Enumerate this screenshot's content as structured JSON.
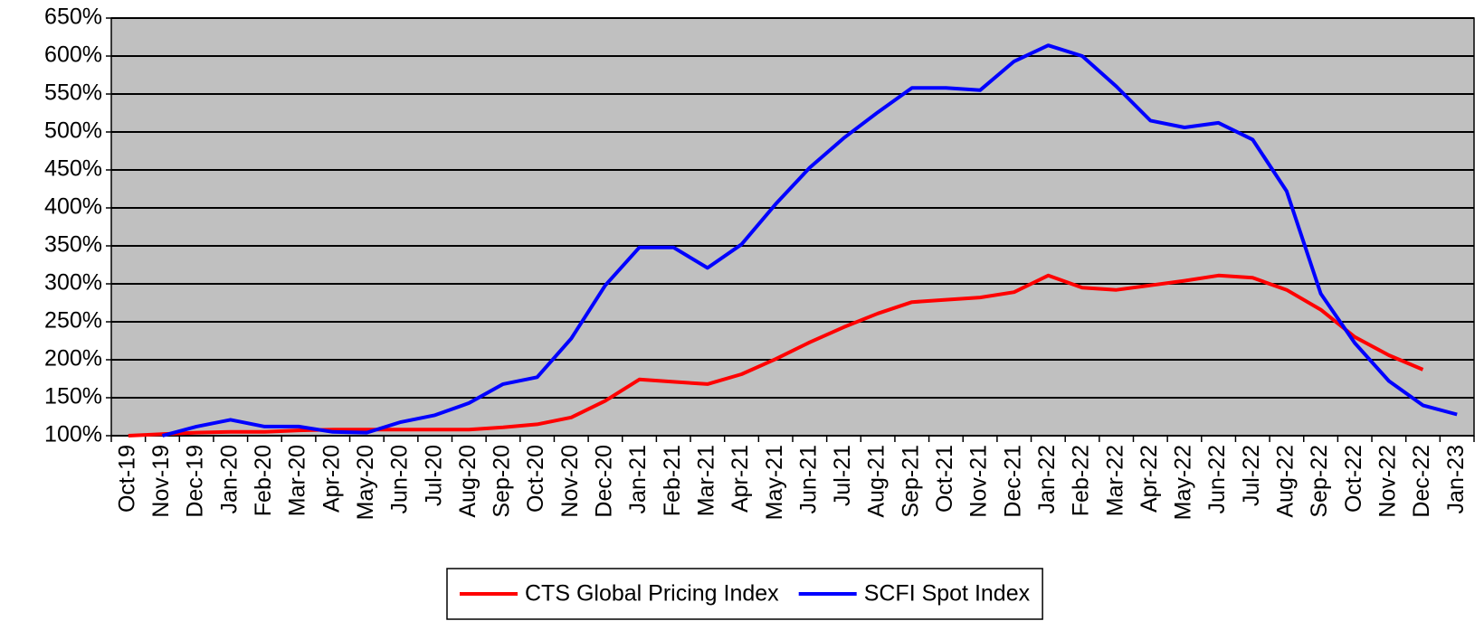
{
  "chart_data": {
    "type": "line",
    "categories": [
      "Oct-19",
      "Nov-19",
      "Dec-19",
      "Jan-20",
      "Feb-20",
      "Mar-20",
      "Apr-20",
      "May-20",
      "Jun-20",
      "Jul-20",
      "Aug-20",
      "Sep-20",
      "Oct-20",
      "Nov-20",
      "Dec-20",
      "Jan-21",
      "Feb-21",
      "Mar-21",
      "Apr-21",
      "May-21",
      "Jun-21",
      "Jul-21",
      "Aug-21",
      "Sep-21",
      "Oct-21",
      "Nov-21",
      "Dec-21",
      "Jan-22",
      "Feb-22",
      "Mar-22",
      "Apr-22",
      "May-22",
      "Jun-22",
      "Jul-22",
      "Aug-22",
      "Sep-22",
      "Oct-22",
      "Nov-22",
      "Dec-22",
      "Jan-23"
    ],
    "series": [
      {
        "name": "CTS Global Pricing Index",
        "color": "#ff0000",
        "values": [
          100,
          102,
          104,
          105,
          105,
          107,
          108,
          108,
          108,
          108,
          108,
          111,
          115,
          124,
          146,
          174,
          171,
          168,
          181,
          201,
          223,
          243,
          261,
          276,
          279,
          282,
          289,
          311,
          295,
          292,
          298,
          304,
          311,
          308,
          292,
          266,
          230,
          206,
          187,
          null
        ]
      },
      {
        "name": "SCFI Spot Index",
        "color": "#0000ff",
        "values": [
          null,
          100,
          112,
          121,
          112,
          112,
          105,
          104,
          118,
          127,
          143,
          168,
          177,
          228,
          298,
          348,
          348,
          321,
          352,
          405,
          453,
          492,
          526,
          558,
          558,
          555,
          593,
          614,
          600,
          560,
          515,
          506,
          512,
          490,
          422,
          287,
          222,
          172,
          140,
          128
        ]
      }
    ],
    "ylim": [
      100,
      650
    ],
    "yticks": [
      {
        "value": 100,
        "label": "100%"
      },
      {
        "value": 150,
        "label": "150%"
      },
      {
        "value": 200,
        "label": "200%"
      },
      {
        "value": 250,
        "label": "250%"
      },
      {
        "value": 300,
        "label": "300%"
      },
      {
        "value": 350,
        "label": "350%"
      },
      {
        "value": 400,
        "label": "400%"
      },
      {
        "value": 450,
        "label": "450%"
      },
      {
        "value": 500,
        "label": "500%"
      },
      {
        "value": 550,
        "label": "550%"
      },
      {
        "value": 600,
        "label": "600%"
      },
      {
        "value": 650,
        "label": "650%"
      }
    ],
    "grid": true,
    "legend": "bottom",
    "background": "#c0c0c0"
  }
}
